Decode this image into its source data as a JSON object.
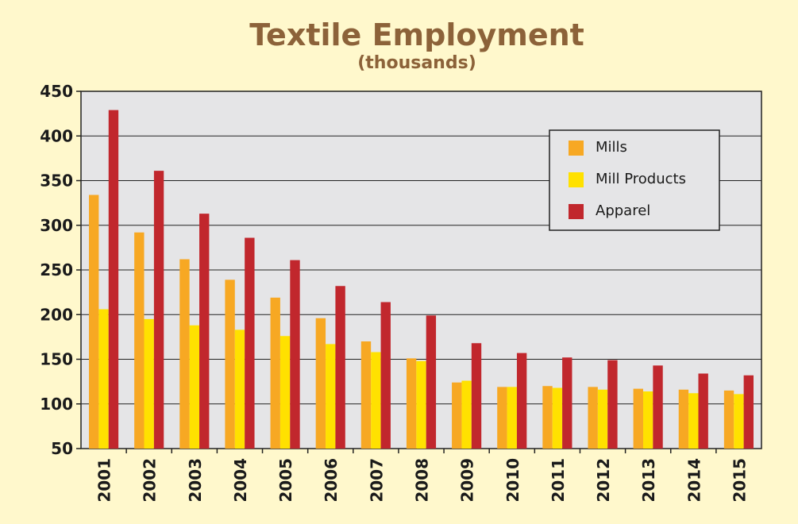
{
  "chart_data": {
    "type": "bar",
    "title": "Textile Employment",
    "subtitle": "(thousands)",
    "xlabel": "",
    "ylabel": "",
    "ylim": [
      50,
      450
    ],
    "yticks": [
      50,
      100,
      150,
      200,
      250,
      300,
      350,
      400,
      450
    ],
    "grid": true,
    "legend_position": "top-right",
    "categories": [
      "2001",
      "2002",
      "2003",
      "2004",
      "2005",
      "2006",
      "2007",
      "2008",
      "2009",
      "2010",
      "2011",
      "2012",
      "2013",
      "2014",
      "2015"
    ],
    "series": [
      {
        "name": "Mills",
        "color": "#f7a823",
        "values": [
          334,
          292,
          262,
          239,
          219,
          196,
          170,
          151,
          124,
          119,
          120,
          119,
          117,
          116,
          115
        ]
      },
      {
        "name": "Mill Products",
        "color": "#ffe100",
        "values": [
          206,
          195,
          188,
          183,
          176,
          167,
          158,
          148,
          126,
          119,
          118,
          116,
          114,
          112,
          111
        ]
      },
      {
        "name": "Apparel",
        "color": "#c1272d",
        "values": [
          429,
          361,
          313,
          286,
          261,
          232,
          214,
          199,
          168,
          157,
          152,
          149,
          143,
          134,
          132
        ]
      }
    ]
  }
}
